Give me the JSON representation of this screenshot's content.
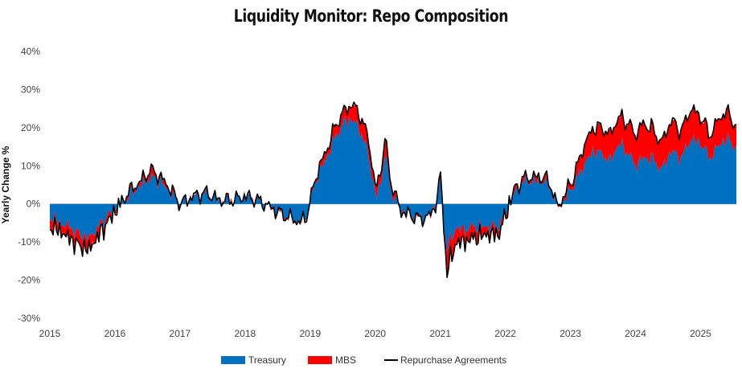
{
  "chart_data": {
    "type": "area",
    "title": "Liquidity Monitor: Repo Composition",
    "ylabel": "Yearly Change %",
    "xlabel": "",
    "ylim": [
      -30,
      40
    ],
    "xlim": [
      2015.0,
      2025.55
    ],
    "y_ticks": [
      {
        "value": 40,
        "label": "40%"
      },
      {
        "value": 30,
        "label": "30%"
      },
      {
        "value": 20,
        "label": "20%"
      },
      {
        "value": 10,
        "label": "10%"
      },
      {
        "value": 0,
        "label": "0%"
      },
      {
        "value": -10,
        "label": "-10%"
      },
      {
        "value": -20,
        "label": "-20%"
      },
      {
        "value": -30,
        "label": "-30%"
      }
    ],
    "x_ticks": [
      "2015",
      "2016",
      "2017",
      "2018",
      "2019",
      "2020",
      "2021",
      "2022",
      "2023",
      "2024",
      "2025"
    ],
    "colors": {
      "Treasury": "#0070c0",
      "MBS": "#ff0000",
      "Repurchase Agreements": "#000000"
    },
    "series": [
      {
        "name": "Treasury",
        "kind": "stacked-area",
        "x": [
          2015.0,
          2015.15,
          2015.3,
          2015.45,
          2015.6,
          2015.8,
          2016.0,
          2016.2,
          2016.4,
          2016.55,
          2016.7,
          2016.85,
          2017.0,
          2017.2,
          2017.4,
          2017.6,
          2017.8,
          2018.0,
          2018.2,
          2018.4,
          2018.6,
          2018.75,
          2018.85,
          2018.95,
          2019.1,
          2019.25,
          2019.4,
          2019.55,
          2019.65,
          2019.75,
          2019.9,
          2020.0,
          2020.08,
          2020.15,
          2020.25,
          2020.4,
          2020.55,
          2020.7,
          2020.85,
          2020.95,
          2021.0,
          2021.05,
          2021.1,
          2021.15,
          2021.25,
          2021.35,
          2021.5,
          2021.7,
          2021.9,
          2022.0,
          2022.15,
          2022.3,
          2022.45,
          2022.6,
          2022.7,
          2022.8,
          2022.9,
          2023.05,
          2023.2,
          2023.35,
          2023.5,
          2023.6,
          2023.75,
          2023.9,
          2024.0,
          2024.1,
          2024.25,
          2024.4,
          2024.55,
          2024.7,
          2024.85,
          2025.0,
          2025.15,
          2025.3,
          2025.45,
          2025.55
        ],
        "values": [
          -3,
          -5,
          -6,
          -8,
          -9,
          -5,
          -1,
          2,
          5,
          7,
          6,
          3,
          0,
          2,
          3,
          1,
          1,
          2,
          1,
          -1,
          -3,
          -4,
          -5,
          -3,
          7,
          12,
          18,
          22,
          22,
          20,
          13,
          2,
          5,
          13,
          3,
          -2,
          -3,
          -4,
          -3,
          1,
          7,
          -4,
          -12,
          -10,
          -6,
          -7,
          -6,
          -6,
          -6,
          -2,
          3,
          6,
          6,
          6,
          4,
          -1,
          1,
          5,
          10,
          14,
          13,
          11,
          16,
          13,
          10,
          12,
          12,
          9,
          14,
          12,
          17,
          16,
          12,
          16,
          17,
          14
        ]
      },
      {
        "name": "MBS",
        "kind": "stacked-area",
        "x": [
          2015.0,
          2015.15,
          2015.3,
          2015.45,
          2015.6,
          2015.8,
          2016.0,
          2016.2,
          2016.4,
          2016.55,
          2016.7,
          2016.85,
          2017.0,
          2017.2,
          2017.4,
          2017.6,
          2017.8,
          2018.0,
          2018.2,
          2018.4,
          2018.6,
          2018.75,
          2018.85,
          2018.95,
          2019.1,
          2019.25,
          2019.4,
          2019.55,
          2019.65,
          2019.75,
          2019.9,
          2020.0,
          2020.08,
          2020.15,
          2020.25,
          2020.4,
          2020.55,
          2020.7,
          2020.85,
          2020.95,
          2021.0,
          2021.05,
          2021.1,
          2021.15,
          2021.25,
          2021.35,
          2021.5,
          2021.7,
          2021.9,
          2022.0,
          2022.15,
          2022.3,
          2022.45,
          2022.6,
          2022.7,
          2022.8,
          2022.9,
          2023.05,
          2023.2,
          2023.35,
          2023.5,
          2023.6,
          2023.75,
          2023.9,
          2024.0,
          2024.1,
          2024.25,
          2024.4,
          2024.55,
          2024.7,
          2024.85,
          2025.0,
          2025.15,
          2025.3,
          2025.45,
          2025.55
        ],
        "values": [
          -3,
          -2,
          -3,
          -3,
          -3,
          -2,
          -1,
          1,
          1,
          2,
          1,
          1,
          0,
          0,
          0,
          0,
          0,
          0,
          0,
          0,
          0,
          0,
          0,
          0,
          1,
          2,
          3,
          3,
          4,
          4,
          4,
          2,
          3,
          4,
          2,
          0,
          0,
          0,
          0,
          0,
          1,
          -1,
          -6,
          -5,
          -4,
          -3,
          -3,
          -2,
          -2,
          -1,
          1,
          1,
          1,
          1,
          1,
          0,
          1,
          2,
          5,
          6,
          7,
          7,
          7,
          8,
          8,
          9,
          8,
          7,
          8,
          7,
          8,
          7,
          6,
          7,
          7,
          5
        ]
      },
      {
        "name": "Repurchase Agreements",
        "kind": "line",
        "x": [
          2015.0,
          2015.15,
          2015.3,
          2015.45,
          2015.6,
          2015.8,
          2016.0,
          2016.2,
          2016.4,
          2016.55,
          2016.7,
          2016.85,
          2017.0,
          2017.2,
          2017.4,
          2017.6,
          2017.8,
          2018.0,
          2018.2,
          2018.4,
          2018.6,
          2018.75,
          2018.85,
          2018.95,
          2019.1,
          2019.25,
          2019.4,
          2019.55,
          2019.65,
          2019.75,
          2019.9,
          2020.0,
          2020.08,
          2020.15,
          2020.25,
          2020.4,
          2020.55,
          2020.7,
          2020.85,
          2020.95,
          2021.0,
          2021.05,
          2021.1,
          2021.15,
          2021.25,
          2021.35,
          2021.5,
          2021.7,
          2021.9,
          2022.0,
          2022.15,
          2022.3,
          2022.45,
          2022.6,
          2022.7,
          2022.8,
          2022.9,
          2023.05,
          2023.2,
          2023.35,
          2023.5,
          2023.6,
          2023.75,
          2023.9,
          2024.0,
          2024.1,
          2024.25,
          2024.4,
          2024.55,
          2024.7,
          2024.85,
          2025.0,
          2025.15,
          2025.3,
          2025.45,
          2025.55
        ],
        "values": [
          -7,
          -8,
          -9,
          -12,
          -13,
          -9,
          -3,
          1,
          6,
          9,
          7,
          3,
          -1,
          2,
          3,
          1,
          0,
          2,
          1,
          -1,
          -4,
          -6,
          -7,
          -4,
          8,
          14,
          21,
          25,
          26,
          24,
          17,
          4,
          8,
          17,
          5,
          -2,
          -4,
          -5,
          -4,
          1,
          8,
          -6,
          -19,
          -16,
          -11,
          -10,
          -9,
          -8,
          -8,
          -3,
          4,
          7,
          7,
          7,
          5,
          -1,
          2,
          7,
          15,
          20,
          20,
          18,
          23,
          21,
          18,
          21,
          20,
          16,
          22,
          19,
          25,
          23,
          18,
          23,
          24,
          19
        ]
      }
    ],
    "legend": {
      "position": "bottom-center",
      "entries": [
        "Treasury",
        "MBS",
        "Repurchase Agreements"
      ]
    }
  }
}
